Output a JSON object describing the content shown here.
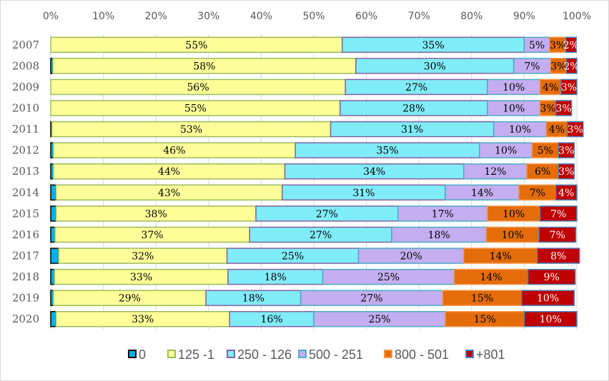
{
  "chart_data": {
    "type": "bar",
    "orientation": "horizontal",
    "stacked": "percent",
    "title": "",
    "xlabel": "",
    "ylabel": "",
    "xlim": [
      0,
      100
    ],
    "x_ticks": [
      "0%",
      "10%",
      "20%",
      "30%",
      "40%",
      "50%",
      "60%",
      "70%",
      "80%",
      "90%",
      "100%"
    ],
    "grid": true,
    "legend_position": "bottom",
    "categories": [
      "2007",
      "2008",
      "2009",
      "2010",
      "2011",
      "2012",
      "2013",
      "2014",
      "2015",
      "2016",
      "2017",
      "2018",
      "2019",
      "2020"
    ],
    "series": [
      {
        "name": "0",
        "fill": "#00b0f0",
        "stroke": "#000000",
        "values": [
          0,
          0.4,
          0,
          0,
          0.2,
          0.5,
          0.5,
          1,
          1,
          0.8,
          1.5,
          0.7,
          0.5,
          1
        ],
        "labels": [
          "",
          "",
          "",
          "",
          "",
          "",
          "",
          "",
          "",
          "",
          "",
          "",
          "",
          ""
        ]
      },
      {
        "name": "125 -1",
        "fill": "#ffff99",
        "stroke": "#9bbb59",
        "values": [
          55.4,
          57.6,
          56,
          55,
          53,
          46,
          44,
          43,
          38,
          37,
          32,
          33,
          29,
          33
        ],
        "labels": [
          "55%",
          "58%",
          "56%",
          "55%",
          "53%",
          "46%",
          "44%",
          "43%",
          "38%",
          "37%",
          "32%",
          "33%",
          "29%",
          "33%"
        ]
      },
      {
        "name": "250 - 126",
        "fill": "#80ecf8",
        "stroke": "#8064a2",
        "values": [
          34.6,
          30,
          27,
          28,
          31,
          35,
          34,
          31,
          27,
          27,
          25,
          18,
          18,
          16
        ],
        "labels": [
          "35%",
          "30%",
          "27%",
          "28%",
          "31%",
          "35%",
          "34%",
          "31%",
          "27%",
          "27%",
          "25%",
          "18%",
          "18%",
          "16%"
        ]
      },
      {
        "name": "500 - 251",
        "fill": "#c4aef0",
        "stroke": "#4bacc6",
        "values": [
          4.8,
          7,
          10,
          10,
          10,
          10,
          12,
          14,
          17,
          18,
          20,
          25,
          27,
          25
        ],
        "labels": [
          "5%",
          "7%",
          "10%",
          "10%",
          "10%",
          "10%",
          "12%",
          "14%",
          "17%",
          "18%",
          "20%",
          "25%",
          "27%",
          "25%"
        ]
      },
      {
        "name": "800 - 501",
        "fill": "#e46c0a",
        "stroke": "#f79646",
        "values": [
          3.1,
          3,
          4,
          3,
          4,
          5,
          6,
          7,
          10,
          10,
          14,
          14,
          15,
          15
        ],
        "labels": [
          "3%",
          "3%",
          "4%",
          "3%",
          "4%",
          "5%",
          "6%",
          "7%",
          "10%",
          "10%",
          "14%",
          "14%",
          "15%",
          "15%"
        ]
      },
      {
        "name": "+801",
        "fill": "#c00000",
        "stroke": "#4f81bd",
        "values": [
          2,
          2,
          3,
          3,
          3,
          3,
          3,
          4,
          7,
          7,
          8,
          9,
          10,
          10
        ],
        "labels": [
          "2%",
          "2%",
          "3%",
          "3%",
          "3%",
          "3%",
          "3%",
          "4%",
          "7%",
          "7%",
          "8%",
          "9%",
          "10%",
          "10%"
        ]
      }
    ]
  }
}
